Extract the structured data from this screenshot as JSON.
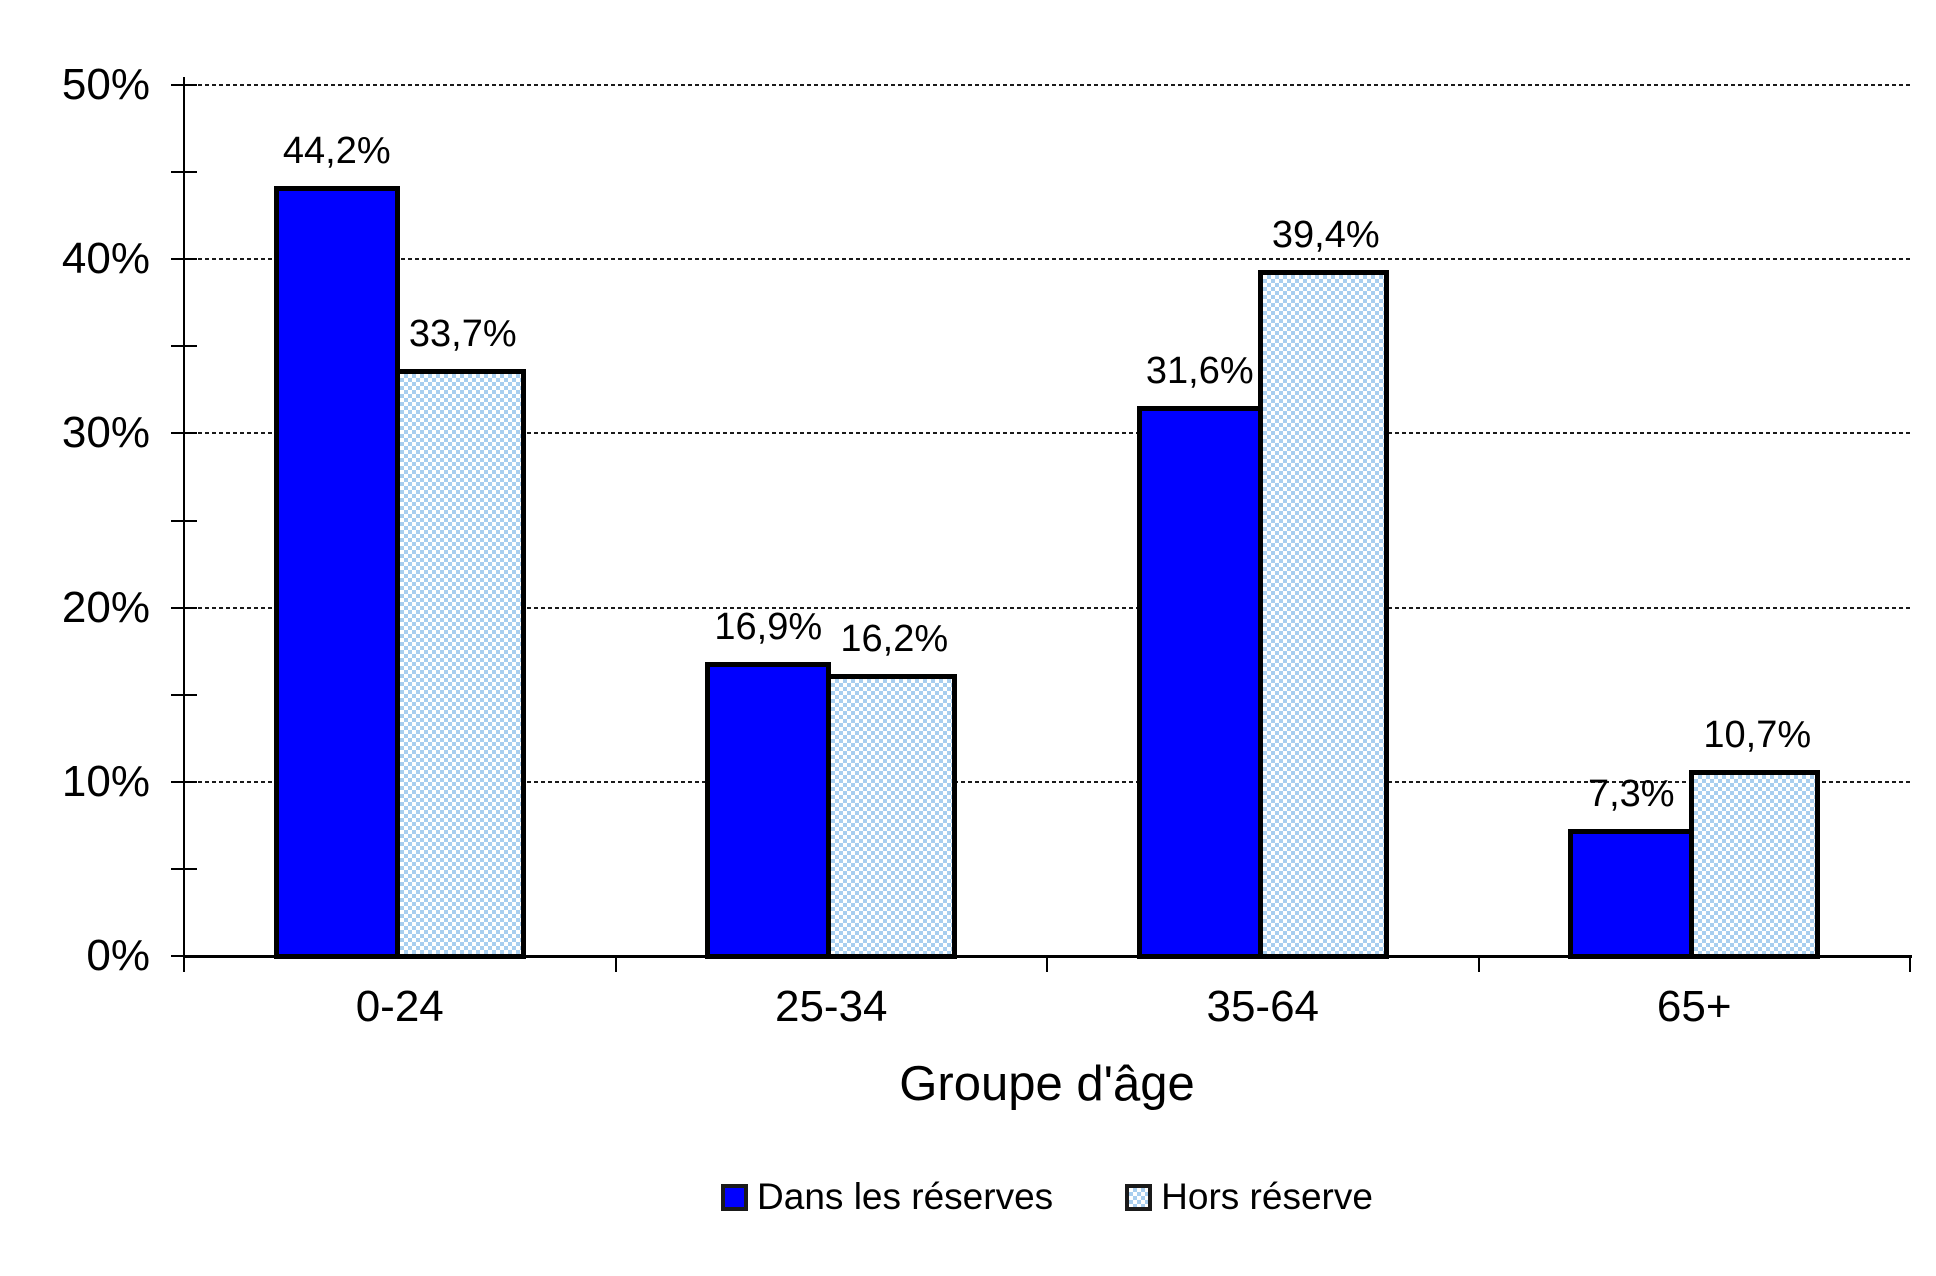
{
  "chart_data": {
    "type": "bar",
    "title": "",
    "xlabel": "Groupe d'âge",
    "categories": [
      "0-24",
      "25-34",
      "35-64",
      "65+"
    ],
    "series": [
      {
        "name": "Dans les réserves",
        "values": [
          44.2,
          16.9,
          31.6,
          7.3
        ],
        "value_labels": [
          "44,2%",
          "16,9%",
          "31,6%",
          "7,3%"
        ],
        "fill": "#0000FF",
        "pattern": "solid",
        "border_color": "#000000"
      },
      {
        "name": "Hors réserve",
        "values": [
          33.7,
          16.2,
          39.4,
          10.7
        ],
        "value_labels": [
          "33,7%",
          "16,2%",
          "39,4%",
          "10,7%"
        ],
        "fill": "#A8CEEF",
        "pattern": "checker",
        "border_color": "#000000"
      }
    ],
    "y_axis": {
      "min": 0,
      "max": 50,
      "major_step": 10,
      "minor_step": 5,
      "tick_labels": [
        "0%",
        "10%",
        "20%",
        "30%",
        "40%",
        "50%"
      ]
    },
    "grid": {
      "horizontal": true,
      "style": "dotted"
    },
    "legend_position": "bottom"
  }
}
